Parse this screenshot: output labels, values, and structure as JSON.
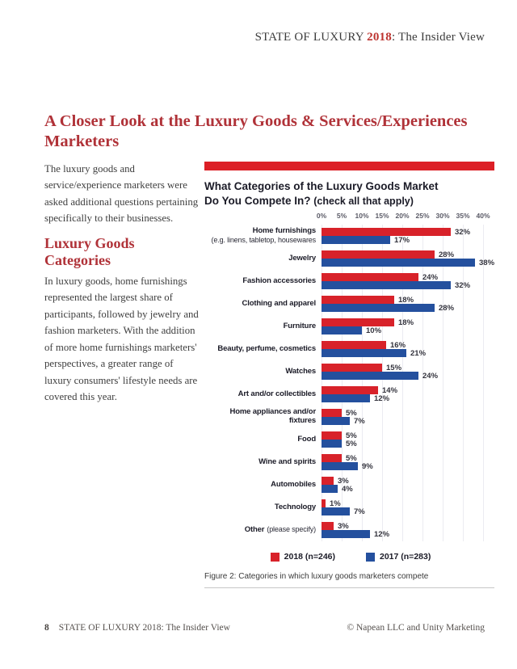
{
  "header": {
    "prefix": "STATE OF LUXURY ",
    "year": "2018",
    "suffix": ": The Insider View"
  },
  "article": {
    "title": "A Closer Look at the Luxury Goods & Services/Experiences Marketers",
    "para1": "The luxury goods and service/experience marketers were asked additional questions pertaining specifically to their businesses.",
    "subheading": "Luxury Goods Categories",
    "para2": "In luxury goods, home furnishings represented the largest share of participants, followed by jewelry and fashion marketers. With the addition of more home furnishings marketers' perspectives, a greater range of luxury consumers' lifestyle needs are covered this year."
  },
  "colors": {
    "banner_red": "#dc1f26",
    "heading_red": "#b03238",
    "bar_red": "#d8222a",
    "bar_blue": "#24509e"
  },
  "chart_data": {
    "type": "bar",
    "orientation": "horizontal",
    "title_line1": "What Categories of the Luxury Goods Market",
    "title_line2": "Do You Compete In?",
    "title_note": "(check all that apply)",
    "axis_ticks": [
      "0%",
      "5%",
      "10%",
      "15%",
      "20%",
      "25%",
      "30%",
      "35%",
      "40%"
    ],
    "xlim": [
      0,
      40
    ],
    "grid": true,
    "legend_position": "bottom",
    "value_suffix": "%",
    "categories": [
      {
        "label": "Home furnishings",
        "note": "(e.g. linens, tabletop, housewares",
        "note_layout": "newline"
      },
      {
        "label": "Jewelry"
      },
      {
        "label": "Fashion accessories"
      },
      {
        "label": "Clothing and apparel"
      },
      {
        "label": "Furniture"
      },
      {
        "label": "Beauty, perfume, cosmetics"
      },
      {
        "label": "Watches"
      },
      {
        "label": "Art and/or collectibles"
      },
      {
        "label": "Home appliances and/or fixtures"
      },
      {
        "label": "Food"
      },
      {
        "label": "Wine and spirits"
      },
      {
        "label": "Automobiles"
      },
      {
        "label": "Technology"
      },
      {
        "label": "Other",
        "note": "(please specify)",
        "note_layout": "inline"
      }
    ],
    "series": [
      {
        "name": "2018 (n=246)",
        "color": "#d8222a",
        "values": [
          32,
          28,
          24,
          18,
          18,
          16,
          15,
          14,
          5,
          5,
          5,
          3,
          1,
          3
        ]
      },
      {
        "name": "2017 (n=283)",
        "color": "#24509e",
        "values": [
          17,
          38,
          32,
          28,
          10,
          21,
          24,
          12,
          7,
          5,
          9,
          4,
          7,
          12
        ]
      }
    ],
    "caption": "Figure 2:  Categories in which luxury goods marketers compete"
  },
  "footer": {
    "page_number": "8",
    "left_text": "STATE OF LUXURY 2018: The Insider View",
    "right_text": "© Napean LLC and Unity Marketing"
  }
}
